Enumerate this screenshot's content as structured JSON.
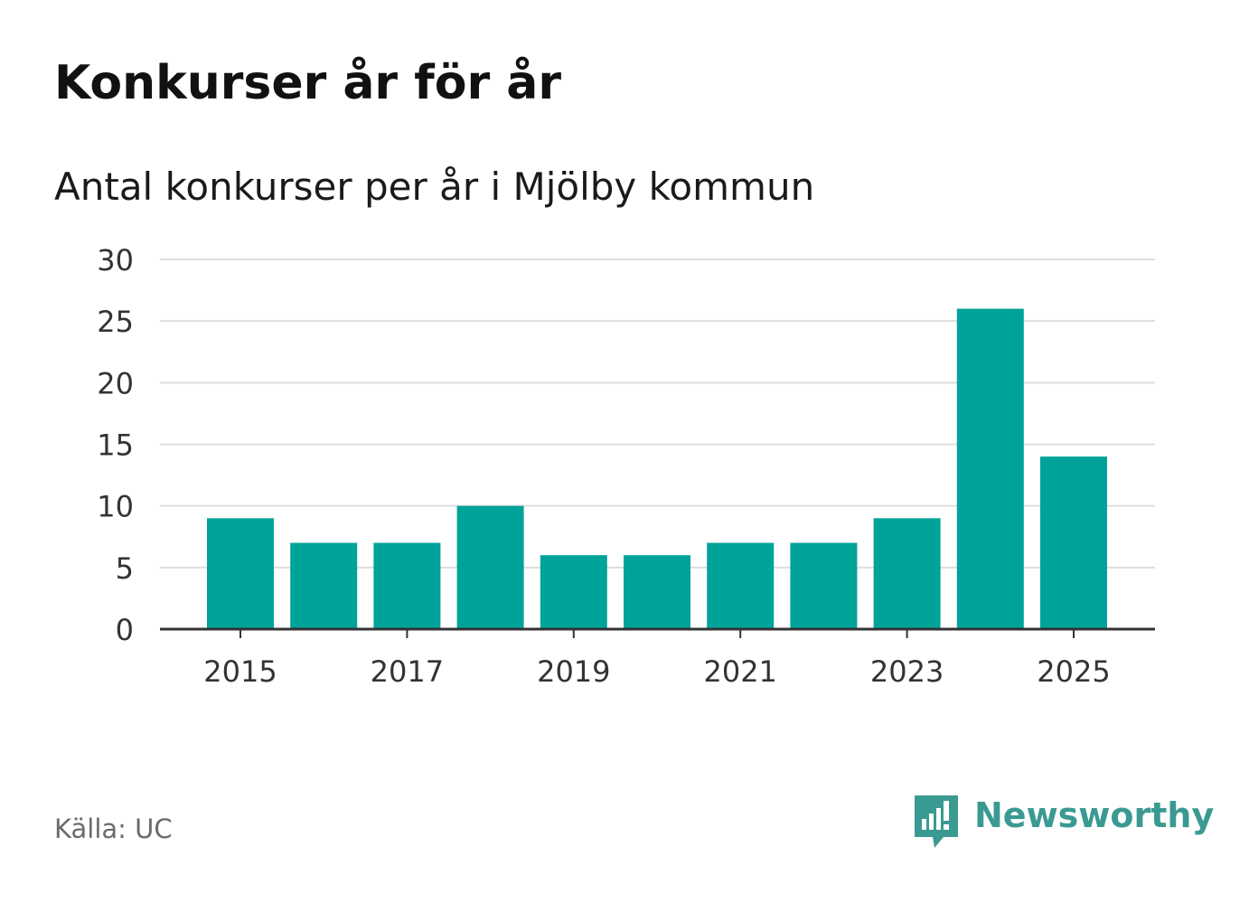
{
  "title": "Konkurser år för år",
  "subtitle": "Antal konkurser per år i Mjölby kommun",
  "source": "Källa: UC",
  "brand": {
    "name": "Newsworthy",
    "logo_icon": "newsworthy-bar-chart-speech-bubble-icon",
    "color": "#3a9a92"
  },
  "chart_data": {
    "type": "bar",
    "categories": [
      "2015",
      "2016",
      "2017",
      "2018",
      "2019",
      "2020",
      "2021",
      "2022",
      "2023",
      "2024",
      "2025"
    ],
    "values": [
      9,
      7,
      7,
      10,
      6,
      6,
      7,
      7,
      9,
      26,
      14
    ],
    "x_tick_labels": [
      "2015",
      "2017",
      "2019",
      "2021",
      "2023",
      "2025"
    ],
    "y_ticks": [
      0,
      5,
      10,
      15,
      20,
      25,
      30
    ],
    "ylim": [
      0,
      30
    ],
    "xlabel": "",
    "ylabel": "",
    "grid": true,
    "bar_color": "#00a39a",
    "grid_color": "#dddddd",
    "axis_color": "#333333"
  }
}
